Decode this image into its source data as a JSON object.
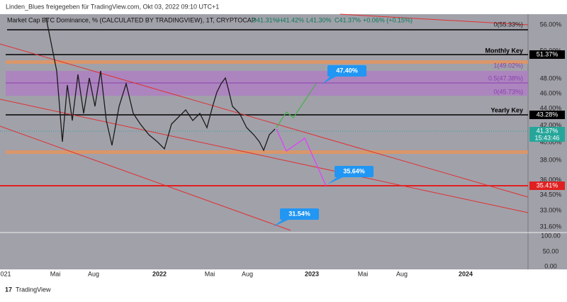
{
  "header": {
    "title": "Linden_Blues freigegeben für TradingView.com, Okt 03, 2022 09:10 UTC+1"
  },
  "legend": {
    "symbol": "Market Cap BTC Dominance, % (CALCULATED BY TRADINGVIEW), 1T, CRYPTOCAP",
    "open": "O41.31%",
    "high": "H41.42%",
    "low": "L41.30%",
    "close": "C41.37%",
    "change": "+0.06% (+0.15%)"
  },
  "price_axis": [
    "56.00%",
    "50.00%",
    "48.00%",
    "46.00%",
    "44.00%",
    "42.00%",
    "40.00%",
    "38.00%",
    "36.00%",
    "34.50%",
    "33.00%",
    "31.60%"
  ],
  "price_boxes": {
    "monthly": "51.37%",
    "yearly": "43.28%",
    "last": "41.37%",
    "countdown": "15:43:46",
    "red": "35.41%"
  },
  "lower_axis": [
    "100.00",
    "50.00",
    "0.00"
  ],
  "time_axis": [
    "021",
    "Mai",
    "Aug",
    "2022",
    "Mai",
    "Aug",
    "2023",
    "Mai",
    "Aug",
    "2024"
  ],
  "levels": {
    "monthly_key": "Monthly Key",
    "yearly_key": "Yearly Key",
    "fib_top": "0(55.33%)",
    "fib_1": "1(49.02%)",
    "fib_05": "0.5(47.38%)",
    "fib_0": "0(45.73%)"
  },
  "targets": [
    "47.40%",
    "35.64%",
    "31.54%"
  ],
  "footer": {
    "brand": "TradingView"
  }
}
